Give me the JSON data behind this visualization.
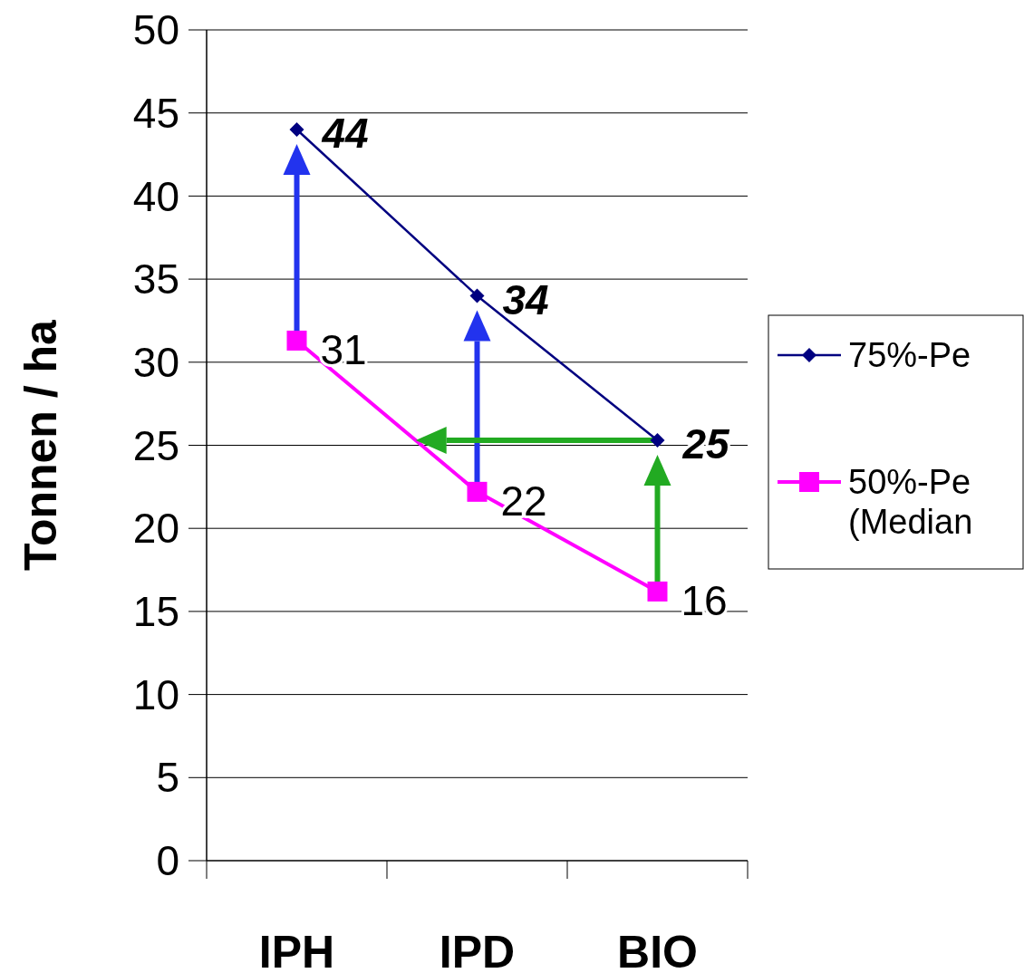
{
  "chart_data": {
    "type": "line",
    "ylabel": "Tonnen / ha",
    "categories": [
      "IPH",
      "IPD",
      "BIO"
    ],
    "ylim": [
      0,
      50
    ],
    "yticks": [
      0,
      5,
      10,
      15,
      20,
      25,
      30,
      35,
      40,
      45,
      50
    ],
    "grid": "y",
    "legend": "right",
    "series": [
      {
        "name": "75%-Pe",
        "color": "#000080",
        "marker": "diamond",
        "values": [
          44,
          34,
          25.3
        ],
        "value_labels": [
          "44",
          "34",
          "25"
        ]
      },
      {
        "name": "50%-Pe (Median",
        "color": "#ff00ff",
        "marker": "square",
        "values": [
          31.3,
          22.2,
          16.2
        ],
        "value_labels": [
          "31",
          "22",
          "16"
        ]
      }
    ]
  }
}
